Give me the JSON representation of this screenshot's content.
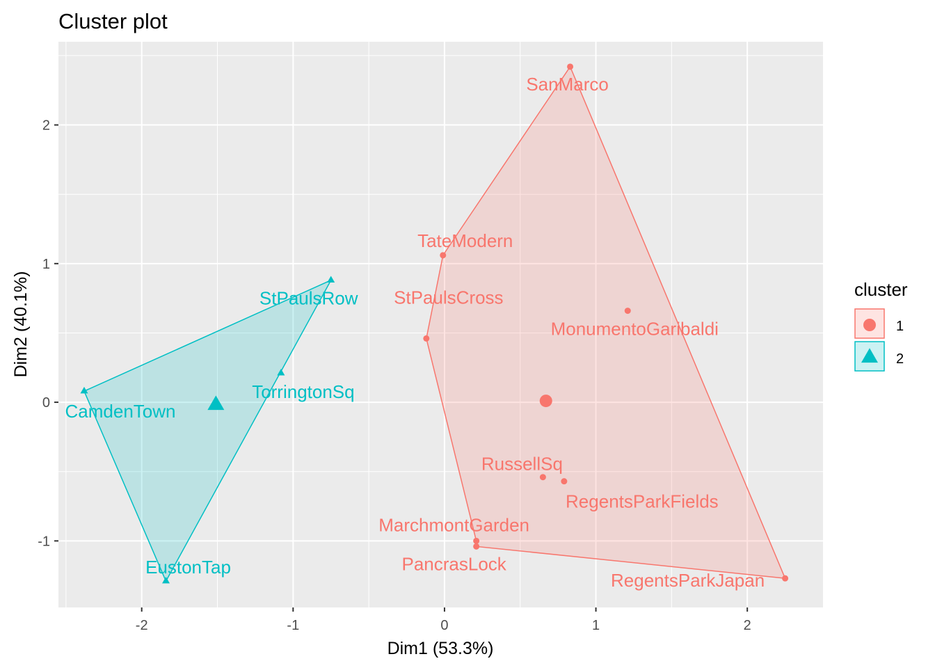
{
  "chart_data": {
    "type": "scatter",
    "title": "Cluster plot",
    "xlabel": "Dim1 (53.3%)",
    "ylabel": "Dim2 (40.1%)",
    "xlim": [
      -2.55,
      2.5
    ],
    "ylim": [
      -1.48,
      2.6
    ],
    "xticks": [
      -2,
      -1,
      0,
      1,
      2
    ],
    "yticks": [
      -1,
      0,
      1,
      2
    ],
    "xtick_labels": [
      "-2",
      "-1",
      "0",
      "1",
      "2"
    ],
    "ytick_labels": [
      "-1",
      "0",
      "1",
      "2"
    ],
    "grid": true,
    "legend": {
      "title": "cluster",
      "position": "right",
      "entries": [
        {
          "label": "1",
          "color": "#F8766D",
          "shape": "circle"
        },
        {
          "label": "2",
          "color": "#00BFC4",
          "shape": "triangle"
        }
      ]
    },
    "series": [
      {
        "name": "1",
        "color": "#F8766D",
        "marker": "circle",
        "points": [
          {
            "label": "SanMarco",
            "x": 0.83,
            "y": 2.42
          },
          {
            "label": "TateModern",
            "x": -0.01,
            "y": 1.06
          },
          {
            "label": "MonumentoGaribaldi",
            "x": 1.21,
            "y": 0.66
          },
          {
            "label": "StPaulsCross",
            "x": -0.12,
            "y": 0.46
          },
          {
            "label": "RussellSq",
            "x": 0.65,
            "y": -0.54
          },
          {
            "label": "RegentsParkFields",
            "x": 0.79,
            "y": -0.57
          },
          {
            "label": "MarchmontGarden",
            "x": 0.21,
            "y": -1.0
          },
          {
            "label": "PancrasLock",
            "x": 0.21,
            "y": -1.04
          },
          {
            "label": "RegentsParkJapan",
            "x": 2.25,
            "y": -1.27
          }
        ],
        "centroid": {
          "x": 0.67,
          "y": 0.01
        },
        "hull": [
          "SanMarco",
          "RegentsParkJapan",
          "PancrasLock",
          "MarchmontGarden",
          "StPaulsCross",
          "TateModern"
        ]
      },
      {
        "name": "2",
        "color": "#00BFC4",
        "marker": "triangle",
        "points": [
          {
            "label": "StPaulsRow",
            "x": -0.75,
            "y": 0.88
          },
          {
            "label": "TorringtonSq",
            "x": -1.08,
            "y": 0.21
          },
          {
            "label": "CamdenTown",
            "x": -2.38,
            "y": 0.08
          },
          {
            "label": "EustonTap",
            "x": -1.84,
            "y": -1.29
          }
        ],
        "centroid": {
          "x": -1.51,
          "y": -0.02
        },
        "hull": [
          "StPaulsRow",
          "CamdenTown",
          "EustonTap"
        ]
      }
    ]
  }
}
